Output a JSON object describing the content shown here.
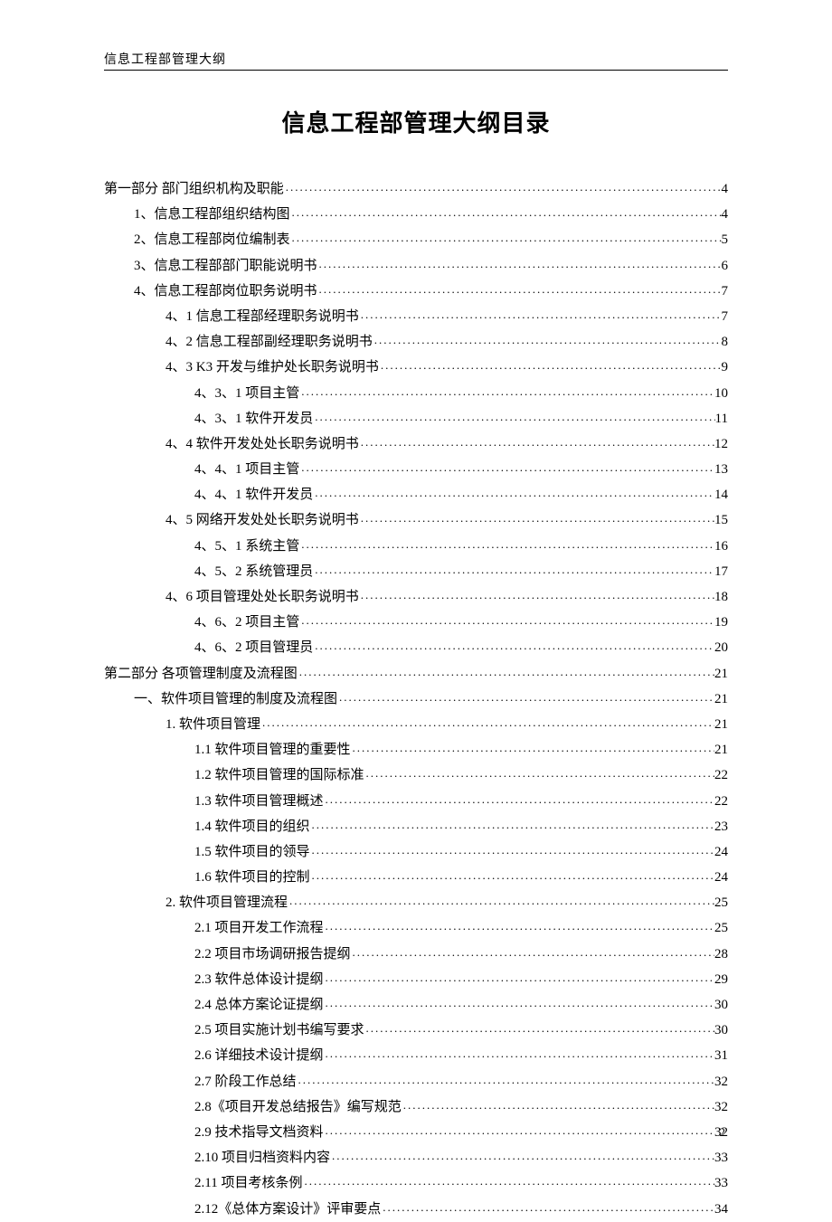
{
  "header": "信息工程部管理大纲",
  "title": "信息工程部管理大纲目录",
  "page_number": "2",
  "toc": [
    {
      "level": 0,
      "label": "第一部分  部门组织机构及职能",
      "page": "4"
    },
    {
      "level": 1,
      "label": "1、信息工程部组织结构图",
      "page": "4"
    },
    {
      "level": 1,
      "label": "2、信息工程部岗位编制表",
      "page": "5"
    },
    {
      "level": 1,
      "label": "3、信息工程部部门职能说明书",
      "page": "6"
    },
    {
      "level": 1,
      "label": "4、信息工程部岗位职务说明书",
      "page": "7"
    },
    {
      "level": 2,
      "label": "4、1 信息工程部经理职务说明书",
      "page": "7"
    },
    {
      "level": 2,
      "label": "4、2 信息工程部副经理职务说明书",
      "page": "8"
    },
    {
      "level": 2,
      "label": "4、3 K3 开发与维护处长职务说明书",
      "page": "9"
    },
    {
      "level": 3,
      "label": "4、3、1 项目主管",
      "page": "10"
    },
    {
      "level": 3,
      "label": "4、3、1 软件开发员",
      "page": "11"
    },
    {
      "level": 2,
      "label": "4、4 软件开发处处长职务说明书",
      "page": "12"
    },
    {
      "level": 3,
      "label": "4、4、1  项目主管",
      "page": "13"
    },
    {
      "level": 3,
      "label": "4、4、1  软件开发员",
      "page": "14"
    },
    {
      "level": 2,
      "label": "4、5 网络开发处处长职务说明书",
      "page": "15"
    },
    {
      "level": 3,
      "label": "4、5、1  系统主管",
      "page": "16"
    },
    {
      "level": 3,
      "label": "4、5、2  系统管理员",
      "page": "17"
    },
    {
      "level": 2,
      "label": "4、6 项目管理处处长职务说明书",
      "page": "18"
    },
    {
      "level": 3,
      "label": "4、6、2  项目主管",
      "page": "19"
    },
    {
      "level": 3,
      "label": "4、6、2  项目管理员",
      "page": "20"
    },
    {
      "level": 0,
      "label": "第二部分  各项管理制度及流程图",
      "page": "21"
    },
    {
      "level": 1,
      "label": "一、软件项目管理的制度及流程图",
      "page": "21"
    },
    {
      "level": 2,
      "label": "1.  软件项目管理",
      "page": "21"
    },
    {
      "level": 3,
      "label": "1.1 软件项目管理的重要性",
      "page": "21"
    },
    {
      "level": 3,
      "label": "1.2 软件项目管理的国际标准",
      "page": "22"
    },
    {
      "level": 3,
      "label": "1.3 软件项目管理概述",
      "page": "22"
    },
    {
      "level": 3,
      "label": "1.4 软件项目的组织",
      "page": "23"
    },
    {
      "level": 3,
      "label": "1.5 软件项目的领导",
      "page": "24"
    },
    {
      "level": 3,
      "label": "1.6 软件项目的控制",
      "page": "24"
    },
    {
      "level": 2,
      "label": "2.  软件项目管理流程",
      "page": "25"
    },
    {
      "level": 3,
      "label": "2.1  项目开发工作流程",
      "page": "25"
    },
    {
      "level": 3,
      "label": "2.2  项目市场调研报告提纲",
      "page": "28"
    },
    {
      "level": 3,
      "label": "2.3  软件总体设计提纲",
      "page": "29"
    },
    {
      "level": 3,
      "label": "2.4  总体方案论证提纲",
      "page": "30"
    },
    {
      "level": 3,
      "label": "2.5  项目实施计划书编写要求",
      "page": "30"
    },
    {
      "level": 3,
      "label": "2.6  详细技术设计提纲",
      "page": "31"
    },
    {
      "level": 3,
      "label": "2.7  阶段工作总结",
      "page": "32"
    },
    {
      "level": 3,
      "label": "2.8《项目开发总结报告》编写规范",
      "page": "32"
    },
    {
      "level": 3,
      "label": "2.9  技术指导文档资料",
      "page": "32"
    },
    {
      "level": 3,
      "label": "2.10  项目归档资料内容",
      "page": "33"
    },
    {
      "level": 3,
      "label": "2.11  项目考核条例",
      "page": "33"
    },
    {
      "level": 3,
      "label": "2.12《总体方案设计》评审要点",
      "page": "34"
    }
  ]
}
